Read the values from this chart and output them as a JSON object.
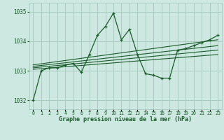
{
  "background_color": "#cce8e0",
  "grid_color": "#aaccc0",
  "line_color": "#1a5c2a",
  "title": "Graphe pression niveau de la mer (hPa)",
  "xlim": [
    -0.5,
    23.5
  ],
  "ylim": [
    1031.7,
    1035.3
  ],
  "yticks": [
    1032,
    1033,
    1034,
    1035
  ],
  "xtick_labels": [
    "0",
    "1",
    "2",
    "3",
    "4",
    "5",
    "6",
    "7",
    "8",
    "9",
    "10",
    "11",
    "12",
    "13",
    "14",
    "15",
    "16",
    "17",
    "18",
    "19",
    "20",
    "21",
    "22",
    "23"
  ],
  "main_series_x": [
    0,
    1,
    2,
    3,
    4,
    5,
    6,
    7,
    8,
    9,
    10,
    11,
    12,
    13,
    14,
    15,
    16,
    17,
    18,
    19,
    20,
    21,
    22,
    23
  ],
  "main_series_y": [
    1032.0,
    1033.0,
    1033.1,
    1033.1,
    1033.2,
    1033.25,
    1032.95,
    1033.55,
    1034.2,
    1034.5,
    1034.95,
    1034.05,
    1034.4,
    1033.55,
    1032.9,
    1032.85,
    1032.75,
    1032.75,
    1033.7,
    1033.75,
    1033.85,
    1033.95,
    1034.05,
    1034.2
  ],
  "trend_lines": [
    [
      1033.05,
      1033.55
    ],
    [
      1033.1,
      1033.7
    ],
    [
      1033.15,
      1033.85
    ],
    [
      1033.2,
      1034.05
    ]
  ]
}
